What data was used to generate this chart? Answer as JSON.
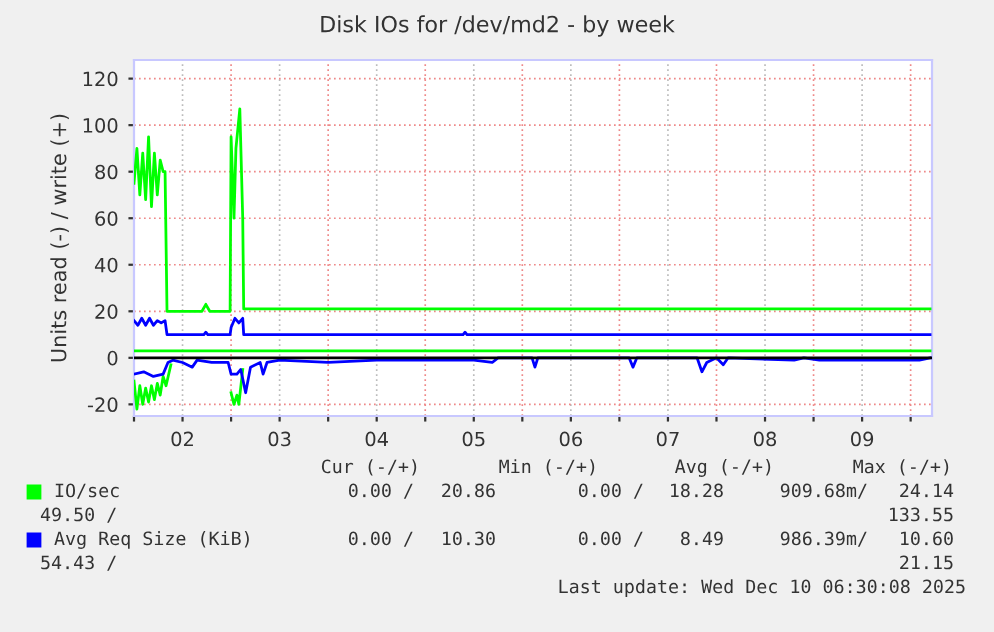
{
  "chart_data": {
    "type": "line",
    "title": "Disk IOs for /dev/md2 - by week",
    "ylabel": "Units read (-) / write (+)",
    "xlim": [
      2.0,
      10.22
    ],
    "ylim": [
      -25,
      128
    ],
    "xticks": [
      {
        "value": 2,
        "label": null
      },
      {
        "value": 2.5,
        "label": "02"
      },
      {
        "value": 3,
        "label": null
      },
      {
        "value": 3.5,
        "label": "03"
      },
      {
        "value": 4,
        "label": null
      },
      {
        "value": 4.5,
        "label": "04"
      },
      {
        "value": 5,
        "label": null
      },
      {
        "value": 5.5,
        "label": "05"
      },
      {
        "value": 6,
        "label": null
      },
      {
        "value": 6.5,
        "label": "06"
      },
      {
        "value": 7,
        "label": null
      },
      {
        "value": 7.5,
        "label": "07"
      },
      {
        "value": 8,
        "label": null
      },
      {
        "value": 8.5,
        "label": "08"
      },
      {
        "value": 9,
        "label": null
      },
      {
        "value": 9.5,
        "label": "09"
      },
      {
        "value": 10,
        "label": null
      }
    ],
    "yticks": [
      -20,
      0,
      20,
      40,
      60,
      80,
      100,
      120
    ],
    "grid": true,
    "legend": "bottom",
    "marker": "none",
    "line_style": "solid",
    "ref_lines": [
      {
        "axis": "y",
        "value": 0,
        "label": null,
        "color": "#000000"
      }
    ],
    "series": [
      {
        "name": "IO/sec",
        "color": "#00ff00",
        "x": [
          2.0,
          2.03,
          2.06,
          2.09,
          2.12,
          2.15,
          2.18,
          2.21,
          2.24,
          2.27,
          2.3,
          2.32,
          2.34,
          2.7,
          2.74,
          2.78,
          2.99,
          3.0,
          3.03,
          3.05,
          3.09,
          3.12,
          3.13,
          4,
          5,
          6,
          7,
          8,
          9,
          10.2
        ],
        "values": [
          75,
          90,
          70,
          88,
          68,
          95,
          65,
          88,
          70,
          85,
          80,
          80,
          20,
          20,
          23,
          20,
          20,
          95,
          60,
          90,
          107,
          60,
          21,
          21,
          21,
          21,
          21,
          21,
          21,
          21
        ]
      },
      {
        "color": "#00ff00",
        "x": [
          2.0,
          2.03,
          2.06,
          2.09,
          2.12,
          2.15,
          2.18,
          2.21,
          2.24,
          2.27,
          2.3,
          2.33,
          2.38,
          2.42,
          3.0,
          3.03,
          3.06,
          3.08,
          3.12
        ],
        "values": [
          -10,
          -22,
          -12,
          -20,
          -13,
          -19,
          -12,
          -18,
          -11,
          -16,
          -8,
          -12,
          -3,
          null,
          -15,
          -20,
          -16,
          -20,
          -5
        ]
      },
      {
        "color": "#00ff00",
        "x": [
          2.0,
          10.2
        ],
        "values": [
          3,
          3
        ]
      },
      {
        "name": "Avg Req Size (KiB)",
        "color": "#0000ff",
        "x": [
          2.0,
          2.04,
          2.08,
          2.12,
          2.16,
          2.2,
          2.24,
          2.28,
          2.32,
          2.34,
          2.72,
          2.74,
          2.76,
          2.99,
          3.0,
          3.04,
          3.08,
          3.12,
          3.13,
          5.39,
          5.41,
          5.43,
          10.2
        ],
        "values": [
          16,
          14,
          17,
          14,
          17,
          14,
          16,
          15,
          16,
          10,
          10,
          11,
          10,
          10,
          13,
          17,
          15,
          17,
          10,
          10,
          11,
          10,
          10
        ]
      },
      {
        "color": "#0000ff",
        "x": [
          2.0,
          2.1,
          2.2,
          2.3,
          2.35,
          2.4,
          2.5,
          2.6,
          2.65,
          2.8,
          2.97,
          3.0,
          3.06,
          3.1,
          3.15,
          3.2,
          3.3,
          3.33,
          3.37,
          3.5,
          4.0,
          4.5,
          5.0,
          5.5,
          5.69,
          5.75,
          6.1,
          6.13,
          6.16,
          7.1,
          7.14,
          7.18,
          7.8,
          7.85,
          7.9,
          8.0,
          8.07,
          8.12,
          8.8,
          8.9,
          9.06,
          10.09,
          10.2
        ],
        "values": [
          -7,
          -6,
          -8,
          -7,
          -2,
          -1,
          -2,
          -4,
          -1,
          -2,
          -2,
          -7,
          -7,
          -5,
          -15,
          -4,
          -2,
          -7,
          -2,
          -1,
          -2,
          -1,
          -1,
          -1,
          -2,
          0,
          0,
          -4,
          0,
          0,
          -4,
          0,
          0,
          -6,
          -2,
          0,
          -3,
          0,
          -1,
          0,
          -1,
          -1,
          0
        ]
      }
    ],
    "annotations": [
      "Cur (-/+)",
      "Min (-/+)",
      "Avg (-/+)",
      "Max (-/+)",
      "0.00 /",
      "20.86",
      "0.00 /",
      "18.28",
      "909.68m/",
      "24.14",
      "49.50 /",
      "133.55",
      "0.00 /",
      "10.30",
      "0.00 /",
      "8.49",
      "986.39m/",
      "10.60",
      "54.43 /",
      "21.15",
      "Last update: Wed Dec 10 06:30:08 2025"
    ]
  }
}
